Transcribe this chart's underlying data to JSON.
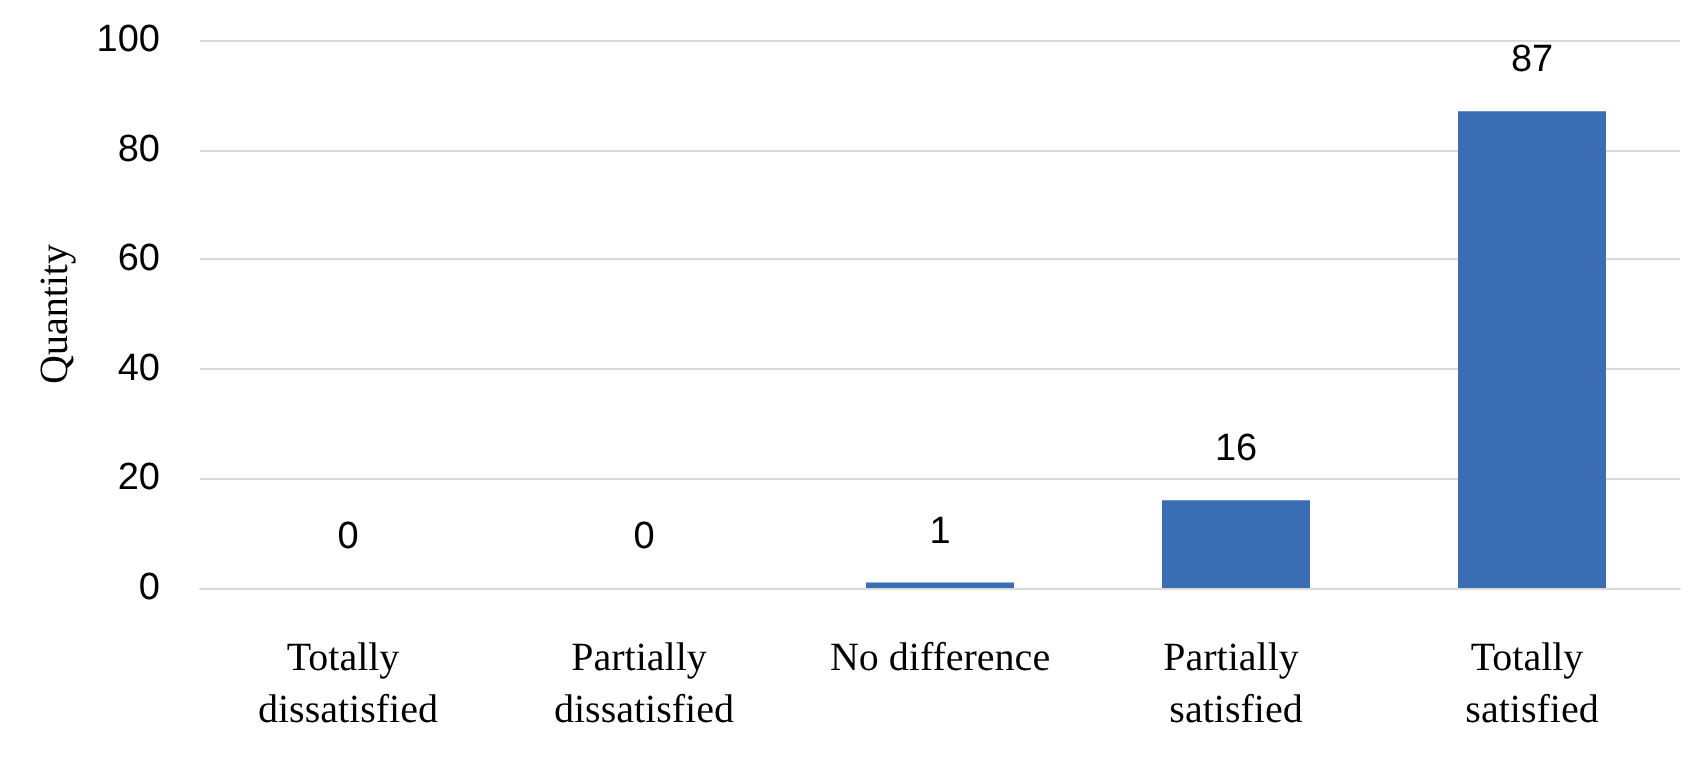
{
  "chart_data": {
    "type": "bar",
    "ylabel": "Quantity",
    "categories": [
      "Totally dissatisfied",
      "Partially dissatisfied",
      "No difference",
      "Partially satisfied",
      "Totally satisfied"
    ],
    "values": [
      0,
      0,
      1,
      16,
      87
    ],
    "color": "#3a6db3",
    "ylim": [
      0,
      100
    ],
    "yticks": [
      0,
      20,
      40,
      60,
      80,
      100
    ],
    "grid": "y",
    "data_labels": true
  }
}
